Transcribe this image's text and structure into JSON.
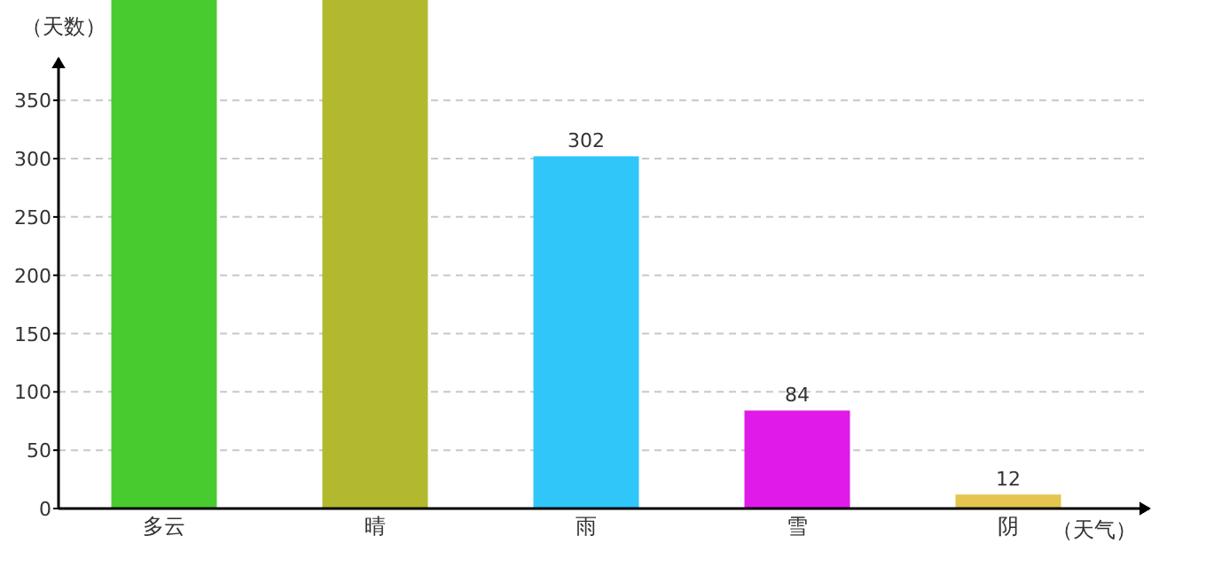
{
  "chart_data": {
    "type": "bar",
    "xlabel": "（天气）",
    "ylabel": "（天数）",
    "categories": [
      "多云",
      "晴",
      "雨",
      "雪",
      "阴"
    ],
    "values": [
      436,
      436,
      302,
      84,
      12
    ],
    "colors": [
      "#48cb2f",
      "#b2b92e",
      "#30c6f9",
      "#e01ae8",
      "#e3c54f"
    ],
    "value_labels": [
      null,
      null,
      "302",
      "84",
      "12"
    ],
    "ylim": [
      0,
      436
    ],
    "yticks": [
      0,
      50,
      100,
      150,
      200,
      250,
      300,
      350
    ],
    "grid": "y"
  }
}
